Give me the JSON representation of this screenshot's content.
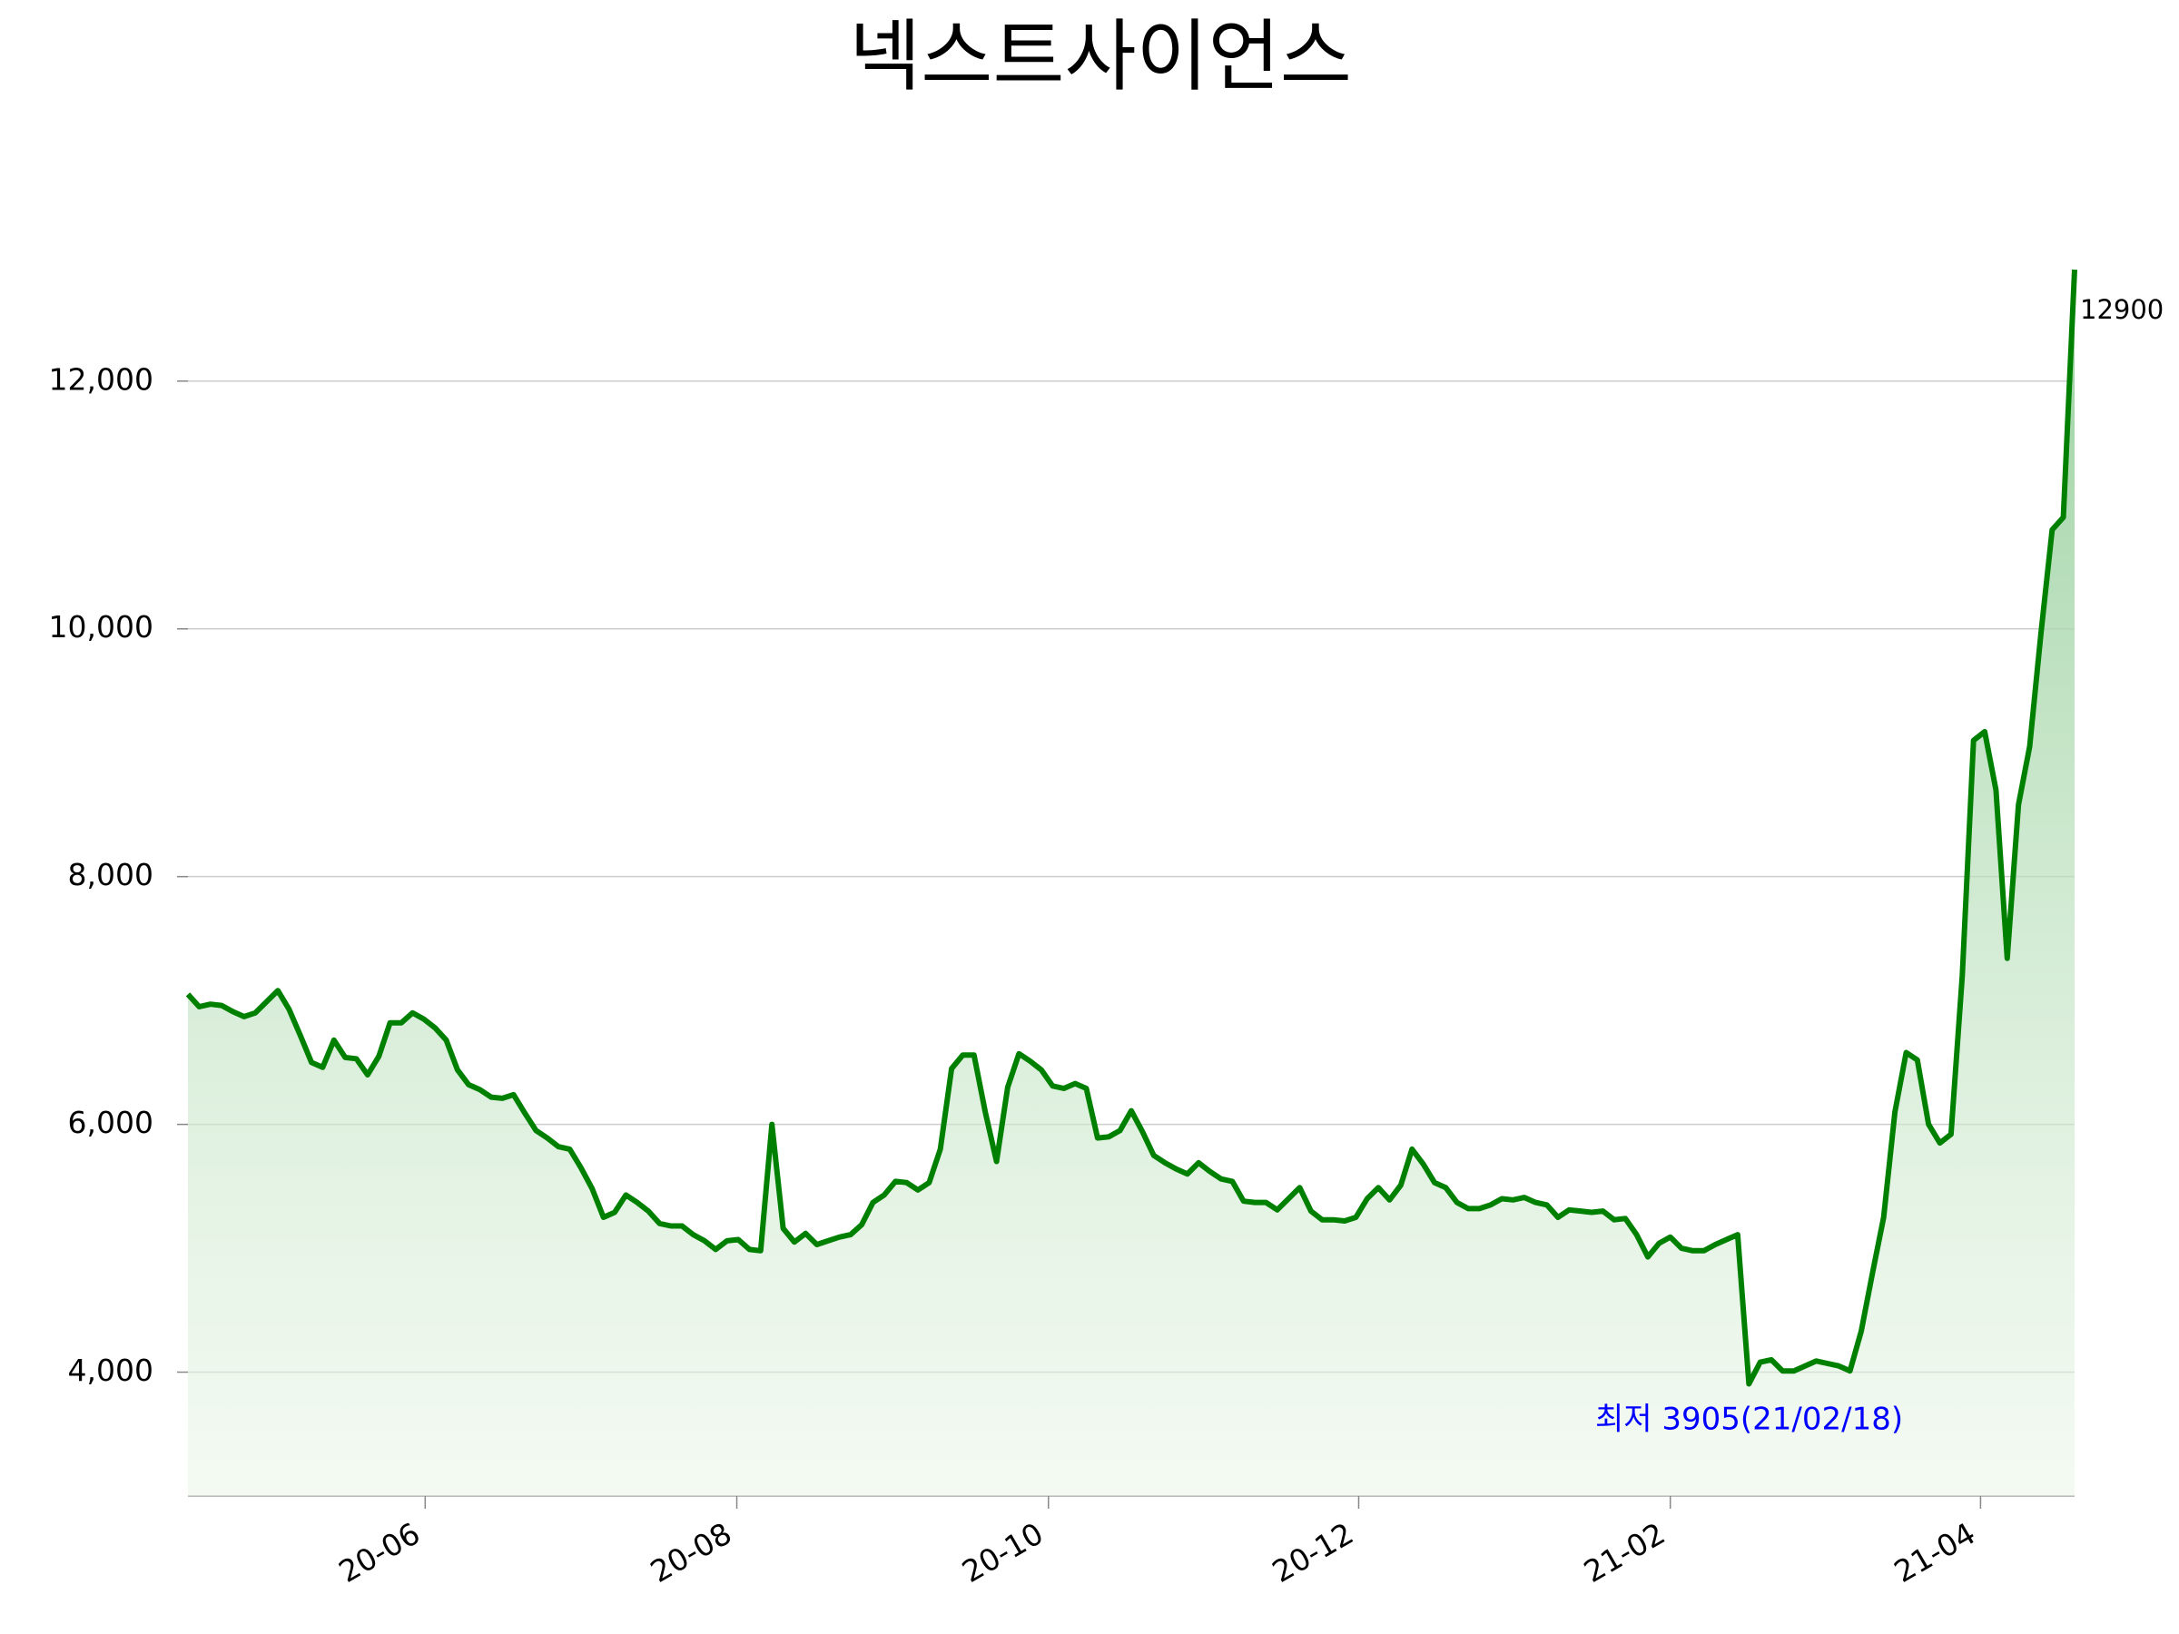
{
  "chart_data": {
    "type": "line",
    "title": "넥스트사이언스",
    "series": [
      {
        "color": "#008000",
        "values": [
          7050,
          6950,
          6970,
          6960,
          6910,
          6870,
          6900,
          6990,
          7080,
          6930,
          6720,
          6500,
          6460,
          6680,
          6540,
          6530,
          6400,
          6550,
          6820,
          6820,
          6900,
          6850,
          6780,
          6680,
          6440,
          6320,
          6280,
          6220,
          6210,
          6240,
          6090,
          5950,
          5890,
          5820,
          5800,
          5650,
          5480,
          5250,
          5290,
          5430,
          5370,
          5300,
          5200,
          5180,
          5180,
          5110,
          5060,
          4990,
          5060,
          5070,
          4990,
          4980,
          6000,
          5160,
          5050,
          5120,
          5030,
          5060,
          5090,
          5110,
          5190,
          5370,
          5430,
          5540,
          5530,
          5470,
          5530,
          5800,
          6450,
          6560,
          6560,
          6100,
          5700,
          6300,
          6570,
          6510,
          6440,
          6310,
          6290,
          6330,
          6290,
          5890,
          5900,
          5950,
          6110,
          5940,
          5750,
          5690,
          5640,
          5600,
          5690,
          5620,
          5560,
          5540,
          5380,
          5370,
          5370,
          5310,
          5400,
          5490,
          5300,
          5230,
          5230,
          5220,
          5250,
          5400,
          5490,
          5390,
          5510,
          5800,
          5680,
          5530,
          5490,
          5370,
          5320,
          5320,
          5350,
          5400,
          5390,
          5410,
          5370,
          5350,
          5250,
          5310,
          5300,
          5290,
          5300,
          5230,
          5240,
          5110,
          4930,
          5040,
          5090,
          5000,
          4980,
          4980,
          5030,
          5070,
          5110,
          3905,
          4080,
          4100,
          4010,
          4010,
          4050,
          4090,
          4070,
          4050,
          4010,
          4330,
          4800,
          5250,
          6100,
          6580,
          6520,
          6000,
          5850,
          5920,
          7200,
          9100,
          9170,
          8700,
          7340,
          8580,
          9050,
          9960,
          10800,
          10900,
          12900
        ]
      }
    ],
    "xlim": [
      0,
      168
    ],
    "xticks": [
      {
        "value": 21.125,
        "label": "20-06"
      },
      {
        "value": 48.875,
        "label": "20-08"
      },
      {
        "value": 76.625,
        "label": "20-10"
      },
      {
        "value": 104.25,
        "label": "20-12"
      },
      {
        "value": 132,
        "label": "21-02"
      },
      {
        "value": 159.625,
        "label": "21-04"
      }
    ],
    "ylim": [
      3000,
      12900
    ],
    "yticks": [
      {
        "value": 4000,
        "label": "4,000"
      },
      {
        "value": 6000,
        "label": "6,000"
      },
      {
        "value": 8000,
        "label": "8,000"
      },
      {
        "value": 10000,
        "label": "10,000"
      },
      {
        "value": 12000,
        "label": "12,000"
      }
    ],
    "grid": true,
    "annotations": [
      "12900",
      "최저 3905(21/02/18)"
    ]
  }
}
